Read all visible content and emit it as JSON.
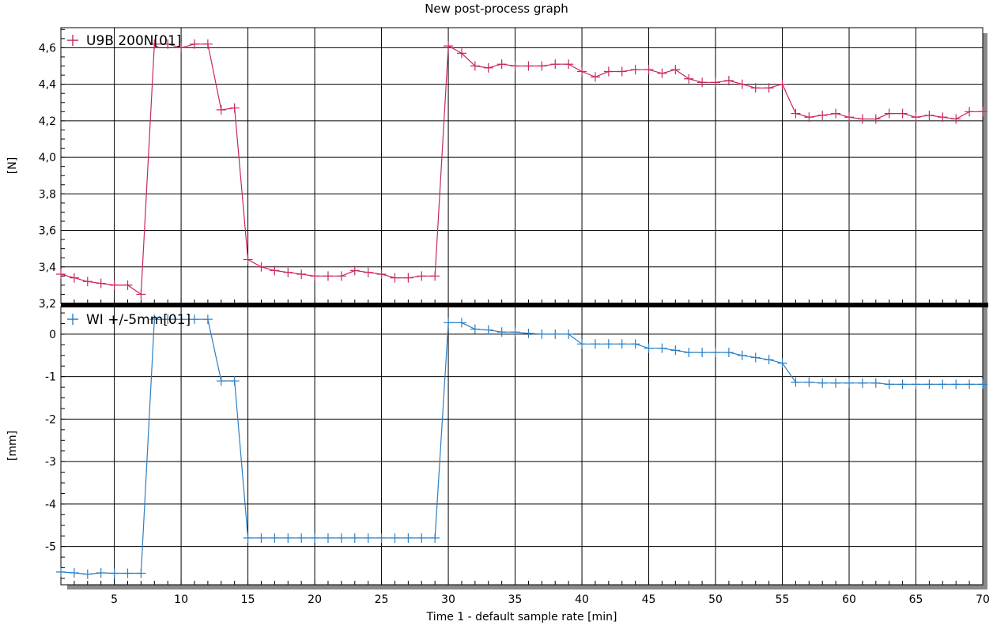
{
  "chart_data": {
    "title": "New post-process graph",
    "type": "line",
    "xlabel": "Time  1 - default sample rate  [min]",
    "xlim": [
      1,
      70
    ],
    "x_ticks": [
      5,
      10,
      15,
      20,
      25,
      30,
      35,
      40,
      45,
      50,
      55,
      60,
      65,
      70
    ],
    "x_tick_labels": [
      "5",
      "10",
      "15",
      "20",
      "25",
      "30",
      "35",
      "40",
      "45",
      "50",
      "55",
      "60",
      "65",
      "70"
    ],
    "x": [
      1,
      2,
      3,
      4,
      5,
      6,
      7,
      8,
      9,
      10,
      11,
      12,
      13,
      14,
      15,
      16,
      17,
      18,
      19,
      20,
      21,
      22,
      23,
      24,
      25,
      26,
      27,
      28,
      29,
      30,
      31,
      32,
      33,
      34,
      35,
      36,
      37,
      38,
      39,
      40,
      41,
      42,
      43,
      44,
      45,
      46,
      47,
      48,
      49,
      50,
      51,
      52,
      53,
      54,
      55,
      56,
      57,
      58,
      59,
      60,
      61,
      62,
      63,
      64,
      65,
      66,
      67,
      68,
      69,
      70
    ],
    "panels": [
      {
        "ylabel": "[N]",
        "ylim": [
          3.2,
          4.71
        ],
        "y_ticks": [
          3.2,
          3.4,
          3.6,
          3.8,
          4.0,
          4.2,
          4.4,
          4.6
        ],
        "y_tick_labels": [
          "3,2",
          "3,4",
          "3,6",
          "3,8",
          "4,0",
          "4,2",
          "4,4",
          "4,6"
        ],
        "series": [
          {
            "name": "U9B 200N[01]",
            "color": "#c8285a",
            "values": [
              3.36,
              3.34,
              3.32,
              3.31,
              3.3,
              3.3,
              3.25,
              4.62,
              4.62,
              4.6,
              4.62,
              4.62,
              4.26,
              4.27,
              3.44,
              3.4,
              3.38,
              3.37,
              3.36,
              3.35,
              3.35,
              3.35,
              3.38,
              3.37,
              3.36,
              3.34,
              3.34,
              3.35,
              3.35,
              4.61,
              4.57,
              4.5,
              4.49,
              4.51,
              4.5,
              4.5,
              4.5,
              4.51,
              4.51,
              4.47,
              4.44,
              4.47,
              4.47,
              4.48,
              4.48,
              4.46,
              4.48,
              4.43,
              4.41,
              4.41,
              4.42,
              4.4,
              4.38,
              4.38,
              4.4,
              4.24,
              4.22,
              4.23,
              4.24,
              4.22,
              4.21,
              4.21,
              4.24,
              4.24,
              4.22,
              4.23,
              4.22,
              4.21,
              4.25,
              4.25
            ]
          }
        ]
      },
      {
        "ylabel": "[mm]",
        "ylim": [
          -5.9,
          0.65
        ],
        "y_ticks": [
          0,
          -1,
          -2,
          -3,
          -4,
          -5
        ],
        "y_tick_labels": [
          "0",
          "-1",
          "-2",
          "-3",
          "-4",
          "-5"
        ],
        "series": [
          {
            "name": "WI +/-5mm[01]",
            "color": "#2b7fc4",
            "values": [
              -5.6,
              -5.62,
              -5.65,
              -5.62,
              -5.63,
              -5.63,
              -5.63,
              0.35,
              0.35,
              0.35,
              0.35,
              0.35,
              -1.1,
              -1.1,
              -4.8,
              -4.8,
              -4.8,
              -4.8,
              -4.8,
              -4.8,
              -4.8,
              -4.8,
              -4.8,
              -4.8,
              -4.8,
              -4.8,
              -4.8,
              -4.8,
              -4.8,
              0.27,
              0.27,
              0.12,
              0.1,
              0.05,
              0.05,
              0.02,
              0.0,
              0.0,
              0.0,
              -0.23,
              -0.23,
              -0.23,
              -0.23,
              -0.23,
              -0.33,
              -0.33,
              -0.38,
              -0.43,
              -0.43,
              -0.43,
              -0.43,
              -0.5,
              -0.55,
              -0.6,
              -0.68,
              -1.13,
              -1.13,
              -1.15,
              -1.15,
              -1.15,
              -1.15,
              -1.15,
              -1.18,
              -1.18,
              -1.18,
              -1.18,
              -1.18,
              -1.18,
              -1.18,
              -1.18
            ]
          }
        ]
      }
    ]
  }
}
